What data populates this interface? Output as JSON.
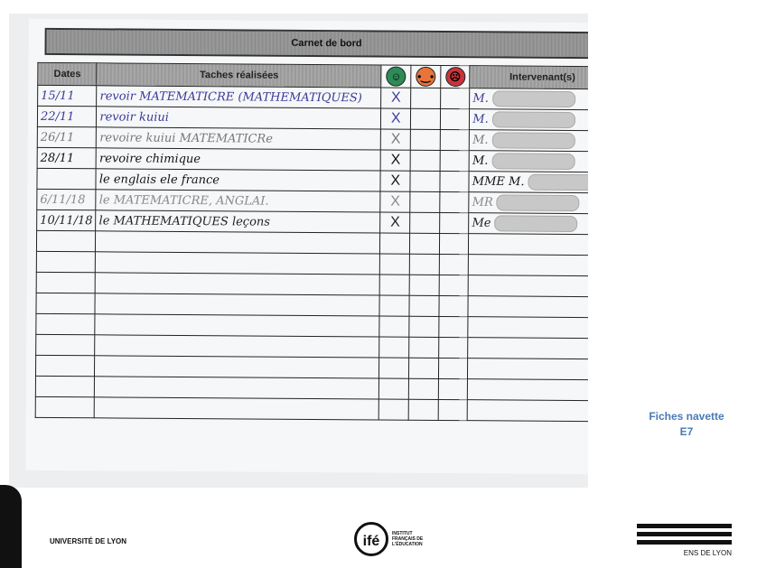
{
  "document": {
    "title": "Carnet de bord",
    "headers": {
      "dates": "Dates",
      "tasks": "Taches réalisées",
      "smiley_good": "happy-face-icon",
      "smiley_neutral": "neutral-face-icon",
      "smiley_bad": "sad-face-icon",
      "intervenant": "Intervenant(s)"
    },
    "smiley_colors": {
      "good": "#2e8b57",
      "neutral": "#e8743b",
      "bad": "#c8343c"
    },
    "rows": [
      {
        "date": "15/11",
        "task": "revoir MATEMATICRE (MATHEMATIQUES)",
        "mark": "X",
        "intervenant": "M.",
        "color": "#3a3a9a"
      },
      {
        "date": "22/11",
        "task": "revoir kuiui",
        "mark": "X",
        "intervenant": "M.",
        "color": "#3a3a9a"
      },
      {
        "date": "26/11",
        "task": "revoire kuiui MATEMATICRe",
        "mark": "X",
        "intervenant": "M.",
        "color": "#777"
      },
      {
        "date": "28/11",
        "task": "revoire chimique",
        "mark": "X",
        "intervenant": "M.",
        "color": "#111"
      },
      {
        "date": "",
        "task": "le englais ele france",
        "mark": "X",
        "intervenant": "MME M.",
        "color": "#111"
      },
      {
        "date": "6/11/18",
        "task": "le MATEMATICRE, ANGLAI.",
        "mark": "X",
        "intervenant": "MR",
        "color": "#888"
      },
      {
        "date": "10/11/18",
        "task": "le MATHEMATIQUES leçons",
        "mark": "X",
        "intervenant": "Me",
        "color": "#222"
      }
    ],
    "empty_rows": 9
  },
  "caption": {
    "line1": "Fiches navette",
    "line2": "E7"
  },
  "logos": {
    "left": "UNIVERSITÉ DE LYON",
    "center": "ifé",
    "center_sub": "INSTITUT FRANÇAIS DE L'ÉDUCATION",
    "right": "ENS DE LYON"
  }
}
